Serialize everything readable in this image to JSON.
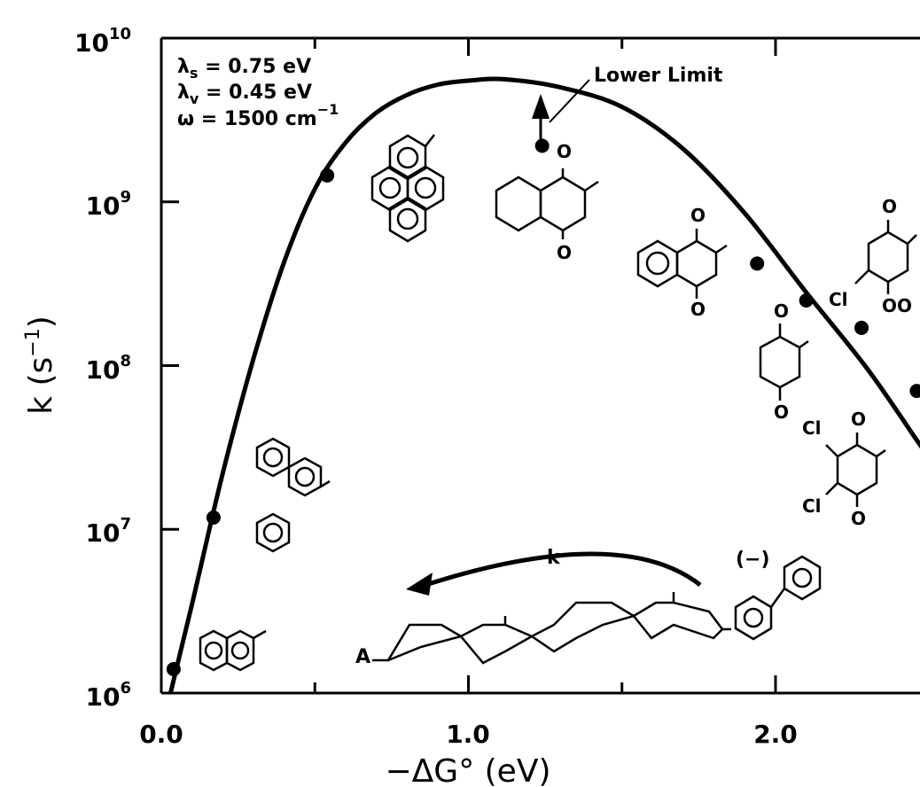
{
  "chart_data": {
    "type": "scatter",
    "x_axis": {
      "label": "−ΔG° (eV)",
      "lim": [
        0.0,
        2.5
      ],
      "ticks": [
        {
          "v": 0.0,
          "label": "0.0"
        },
        {
          "v": 1.0,
          "label": "1.0"
        },
        {
          "v": 2.0,
          "label": "2.0"
        }
      ],
      "minor_ticks": [
        0.5,
        1.5
      ]
    },
    "y_axis": {
      "label_base": "k (s",
      "label_sup": "−1",
      "label_close": ")",
      "scale": "log",
      "lim": [
        1000000,
        10000000000
      ],
      "ticks": [
        {
          "v": 1000000,
          "base": "10",
          "exp": "6"
        },
        {
          "v": 10000000,
          "base": "10",
          "exp": "7"
        },
        {
          "v": 100000000,
          "base": "10",
          "exp": "8"
        },
        {
          "v": 1000000000,
          "base": "10",
          "exp": "9"
        },
        {
          "v": 10000000000,
          "base": "10",
          "exp": "10"
        }
      ]
    },
    "parameters": [
      {
        "sym": "λ",
        "sub": "s",
        "rest": " = 0.75 eV"
      },
      {
        "sym": "λ",
        "sub": "v",
        "rest": " = 0.45 eV"
      },
      {
        "sym": "ω",
        "sub": "",
        "rest": " = 1500 cm",
        "sup": "−1"
      }
    ],
    "points": [
      {
        "x": 0.04,
        "y": 1400000
      },
      {
        "x": 0.17,
        "y": 11800000
      },
      {
        "x": 0.54,
        "y": 1450000000
      },
      {
        "x": 1.24,
        "y": 2200000000,
        "lower_limit": true
      },
      {
        "x": 1.94,
        "y": 420000000
      },
      {
        "x": 2.1,
        "y": 250000000
      },
      {
        "x": 2.28,
        "y": 170000000
      },
      {
        "x": 2.46,
        "y": 70000000
      }
    ],
    "fit_curve": [
      {
        "x": 0.03,
        "y": 1000000
      },
      {
        "x": 0.1,
        "y": 3500000
      },
      {
        "x": 0.2,
        "y": 22000000
      },
      {
        "x": 0.3,
        "y": 110000000
      },
      {
        "x": 0.4,
        "y": 430000000
      },
      {
        "x": 0.5,
        "y": 1200000000
      },
      {
        "x": 0.6,
        "y": 2300000000
      },
      {
        "x": 0.7,
        "y": 3500000000
      },
      {
        "x": 0.8,
        "y": 4500000000
      },
      {
        "x": 0.9,
        "y": 5200000000
      },
      {
        "x": 1.0,
        "y": 5500000000
      },
      {
        "x": 1.12,
        "y": 5600000000
      },
      {
        "x": 1.3,
        "y": 5000000000
      },
      {
        "x": 1.5,
        "y": 3800000000
      },
      {
        "x": 1.7,
        "y": 2100000000
      },
      {
        "x": 1.9,
        "y": 850000000
      },
      {
        "x": 2.1,
        "y": 280000000
      },
      {
        "x": 2.3,
        "y": 95000000
      },
      {
        "x": 2.46,
        "y": 35000000
      },
      {
        "x": 2.55,
        "y": 20000000
      }
    ],
    "annotations": {
      "lower_limit": "Lower Limit",
      "k_label": "k",
      "anion_label": "(−)",
      "acceptor_label": "A",
      "cl_labels": [
        "Cl",
        "Cl",
        "Cl"
      ],
      "o_labels": [
        "O",
        "O",
        "O",
        "O",
        "O",
        "O",
        "O",
        "O",
        "O",
        "O",
        "O"
      ]
    }
  }
}
